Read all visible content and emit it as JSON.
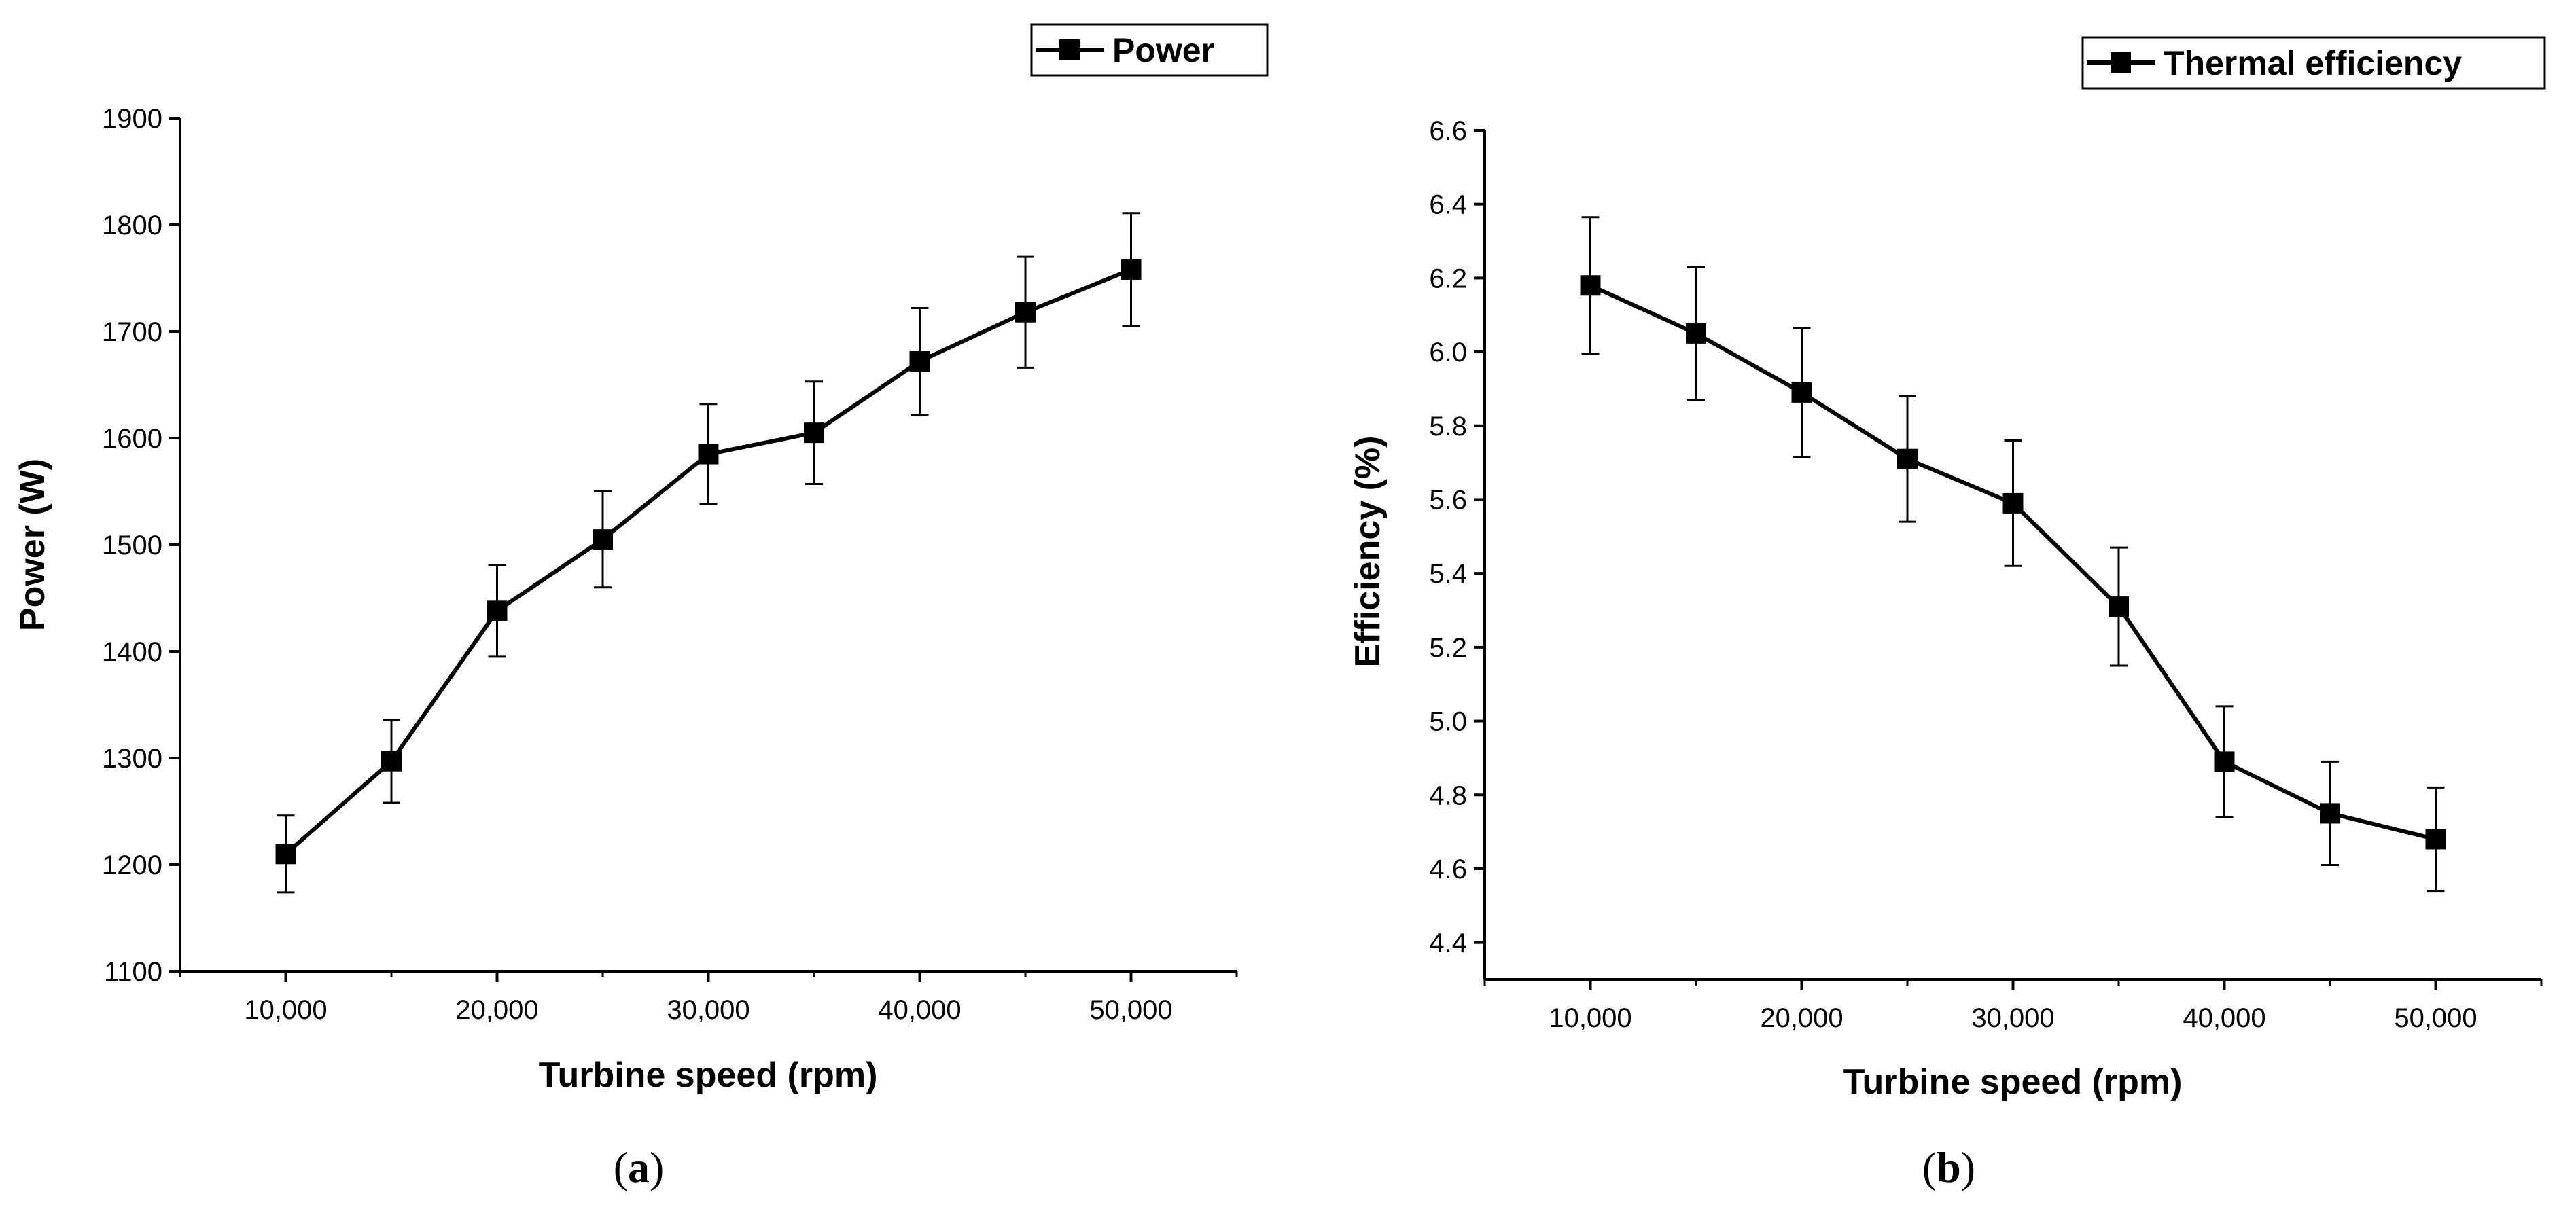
{
  "chart_data": [
    {
      "type": "line",
      "panel_label": "a",
      "x": [
        10000,
        15000,
        20000,
        25000,
        30000,
        35000,
        40000,
        45000,
        50000
      ],
      "series": [
        {
          "name": "Power",
          "values": [
            1210,
            1297,
            1438,
            1505,
            1585,
            1605,
            1672,
            1718,
            1758
          ],
          "error": [
            36,
            39,
            43,
            45,
            47,
            48,
            50,
            52,
            53
          ]
        }
      ],
      "xlabel": "Turbine speed (rpm)",
      "ylabel": "Power (W)",
      "xlim": [
        5000,
        55000
      ],
      "ylim": [
        1100,
        1900
      ],
      "x_ticks": [
        10000,
        20000,
        30000,
        40000,
        50000
      ],
      "x_tick_labels": [
        "10,000",
        "20,000",
        "30,000",
        "40,000",
        "50,000"
      ],
      "y_ticks": [
        1100,
        1200,
        1300,
        1400,
        1500,
        1600,
        1700,
        1800,
        1900
      ],
      "y_tick_labels": [
        "1100",
        "1200",
        "1300",
        "1400",
        "1500",
        "1600",
        "1700",
        "1800",
        "1900"
      ],
      "legend_position": "top-right",
      "grid": false
    },
    {
      "type": "line",
      "panel_label": "b",
      "x": [
        10000,
        15000,
        20000,
        25000,
        30000,
        35000,
        40000,
        45000,
        50000
      ],
      "series": [
        {
          "name": "Thermal efficiency",
          "values": [
            6.18,
            6.05,
            5.89,
            5.71,
            5.59,
            5.31,
            4.89,
            4.75,
            4.68
          ],
          "error": [
            0.185,
            0.18,
            0.175,
            0.17,
            0.17,
            0.16,
            0.15,
            0.14,
            0.14
          ]
        }
      ],
      "xlabel": "Turbine speed (rpm)",
      "ylabel": "Efficiency (%)",
      "xlim": [
        5000,
        55000
      ],
      "ylim": [
        4.3,
        6.6
      ],
      "x_ticks": [
        10000,
        20000,
        30000,
        40000,
        50000
      ],
      "x_tick_labels": [
        "10,000",
        "20,000",
        "30,000",
        "40,000",
        "50,000"
      ],
      "y_ticks": [
        4.4,
        4.6,
        4.8,
        5.0,
        5.2,
        5.4,
        5.6,
        5.8,
        6.0,
        6.2,
        6.4,
        6.6
      ],
      "y_tick_labels": [
        "4.4",
        "4.6",
        "4.8",
        "5.0",
        "5.2",
        "5.4",
        "5.6",
        "5.8",
        "6.0",
        "6.2",
        "6.4",
        "6.6"
      ],
      "legend_position": "top-right",
      "grid": false
    }
  ],
  "panel_labels": [
    {
      "open": "(",
      "letter": "a",
      "close": ")"
    },
    {
      "open": "(",
      "letter": "b",
      "close": ")"
    }
  ]
}
